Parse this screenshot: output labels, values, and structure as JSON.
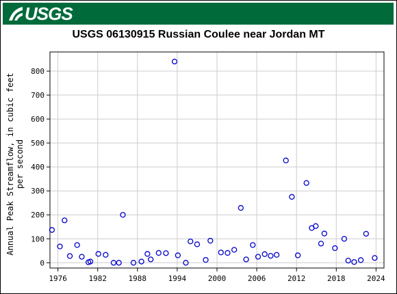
{
  "header": {
    "logo_text": "USGS"
  },
  "chart_data": {
    "type": "scatter",
    "title": "USGS 06130915 Russian Coulee near Jordan MT",
    "xlabel": "",
    "ylabel_lines": [
      "Annual Peak Streamflow, in cubic feet",
      "per second"
    ],
    "xlim": [
      1974.8,
      2025.2
    ],
    "ylim": [
      -22,
      880
    ],
    "x_ticks": [
      1976,
      1982,
      1988,
      1994,
      2000,
      2006,
      2012,
      2018,
      2024
    ],
    "y_ticks": [
      0,
      100,
      200,
      300,
      400,
      500,
      600,
      700,
      800
    ],
    "grid": true,
    "marker_color": "#0000cc",
    "points": [
      {
        "x": 1975.1,
        "y": 137
      },
      {
        "x": 1976.3,
        "y": 68
      },
      {
        "x": 1977.0,
        "y": 177
      },
      {
        "x": 1977.8,
        "y": 28
      },
      {
        "x": 1978.9,
        "y": 74
      },
      {
        "x": 1979.6,
        "y": 25
      },
      {
        "x": 1980.6,
        "y": 2
      },
      {
        "x": 1980.9,
        "y": 5
      },
      {
        "x": 1982.1,
        "y": 37
      },
      {
        "x": 1983.2,
        "y": 33
      },
      {
        "x": 1984.4,
        "y": 0
      },
      {
        "x": 1985.2,
        "y": 0
      },
      {
        "x": 1985.8,
        "y": 200
      },
      {
        "x": 1987.4,
        "y": 0
      },
      {
        "x": 1988.6,
        "y": 5
      },
      {
        "x": 1989.5,
        "y": 37
      },
      {
        "x": 1990.0,
        "y": 14
      },
      {
        "x": 1991.2,
        "y": 41
      },
      {
        "x": 1992.3,
        "y": 40
      },
      {
        "x": 1993.6,
        "y": 840
      },
      {
        "x": 1994.1,
        "y": 31
      },
      {
        "x": 1995.3,
        "y": 0
      },
      {
        "x": 1996.0,
        "y": 89
      },
      {
        "x": 1997.0,
        "y": 77
      },
      {
        "x": 1998.3,
        "y": 12
      },
      {
        "x": 1999.0,
        "y": 92
      },
      {
        "x": 2000.6,
        "y": 43
      },
      {
        "x": 2001.6,
        "y": 41
      },
      {
        "x": 2002.6,
        "y": 54
      },
      {
        "x": 2003.6,
        "y": 229
      },
      {
        "x": 2004.4,
        "y": 14
      },
      {
        "x": 2005.4,
        "y": 74
      },
      {
        "x": 2006.2,
        "y": 25
      },
      {
        "x": 2007.2,
        "y": 36
      },
      {
        "x": 2008.1,
        "y": 29
      },
      {
        "x": 2009.0,
        "y": 33
      },
      {
        "x": 2010.4,
        "y": 427
      },
      {
        "x": 2011.3,
        "y": 275
      },
      {
        "x": 2012.2,
        "y": 31
      },
      {
        "x": 2013.5,
        "y": 333
      },
      {
        "x": 2014.3,
        "y": 145
      },
      {
        "x": 2014.9,
        "y": 153
      },
      {
        "x": 2015.7,
        "y": 80
      },
      {
        "x": 2016.2,
        "y": 122
      },
      {
        "x": 2017.8,
        "y": 61
      },
      {
        "x": 2019.2,
        "y": 100
      },
      {
        "x": 2019.8,
        "y": 9
      },
      {
        "x": 2020.7,
        "y": 3
      },
      {
        "x": 2021.7,
        "y": 11
      },
      {
        "x": 2022.5,
        "y": 121
      },
      {
        "x": 2023.8,
        "y": 20
      }
    ]
  }
}
